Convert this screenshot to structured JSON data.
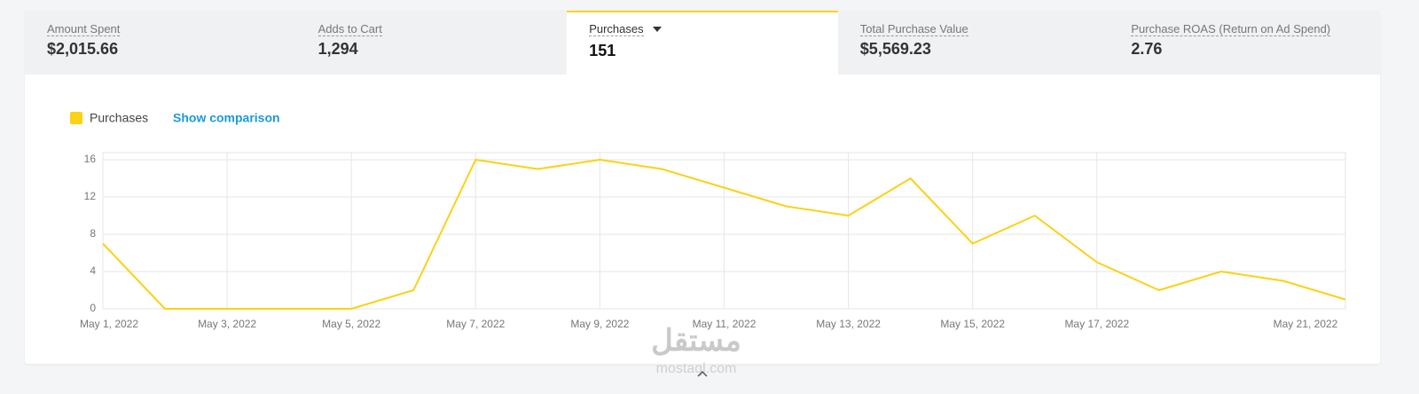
{
  "tabs": [
    {
      "label": "Amount Spent",
      "value": "$2,015.66"
    },
    {
      "label": "Adds to Cart",
      "value": "1,294"
    },
    {
      "label": "Purchases",
      "value": "151"
    },
    {
      "label": "Total Purchase Value",
      "value": "$5,569.23"
    },
    {
      "label": "Purchase ROAS (Return on Ad Spend)",
      "value": "2.76"
    }
  ],
  "selected_tab": 2,
  "comparison_link": "Show comparison",
  "watermark": {
    "logo": "مستقل",
    "site": "mostaql.com"
  },
  "chart_data": {
    "type": "line",
    "categories": [
      "May 1, 2022",
      null,
      "May 3, 2022",
      null,
      "May 5, 2022",
      null,
      "May 7, 2022",
      null,
      "May 9, 2022",
      null,
      "May 11, 2022",
      null,
      "May 13, 2022",
      null,
      "May 15, 2022",
      null,
      "May 17, 2022",
      null,
      null,
      null,
      "May 21, 2022"
    ],
    "series": [
      {
        "name": "Purchases",
        "color": "#fcd116",
        "values": [
          7,
          0,
          0,
          0,
          0,
          2,
          16,
          15,
          16,
          15,
          13,
          11,
          10,
          14,
          7,
          10,
          5,
          2,
          4,
          3,
          1
        ]
      }
    ],
    "ylim": [
      0,
      16
    ],
    "yticks": [
      0,
      4,
      8,
      12,
      16
    ],
    "grid": true
  }
}
